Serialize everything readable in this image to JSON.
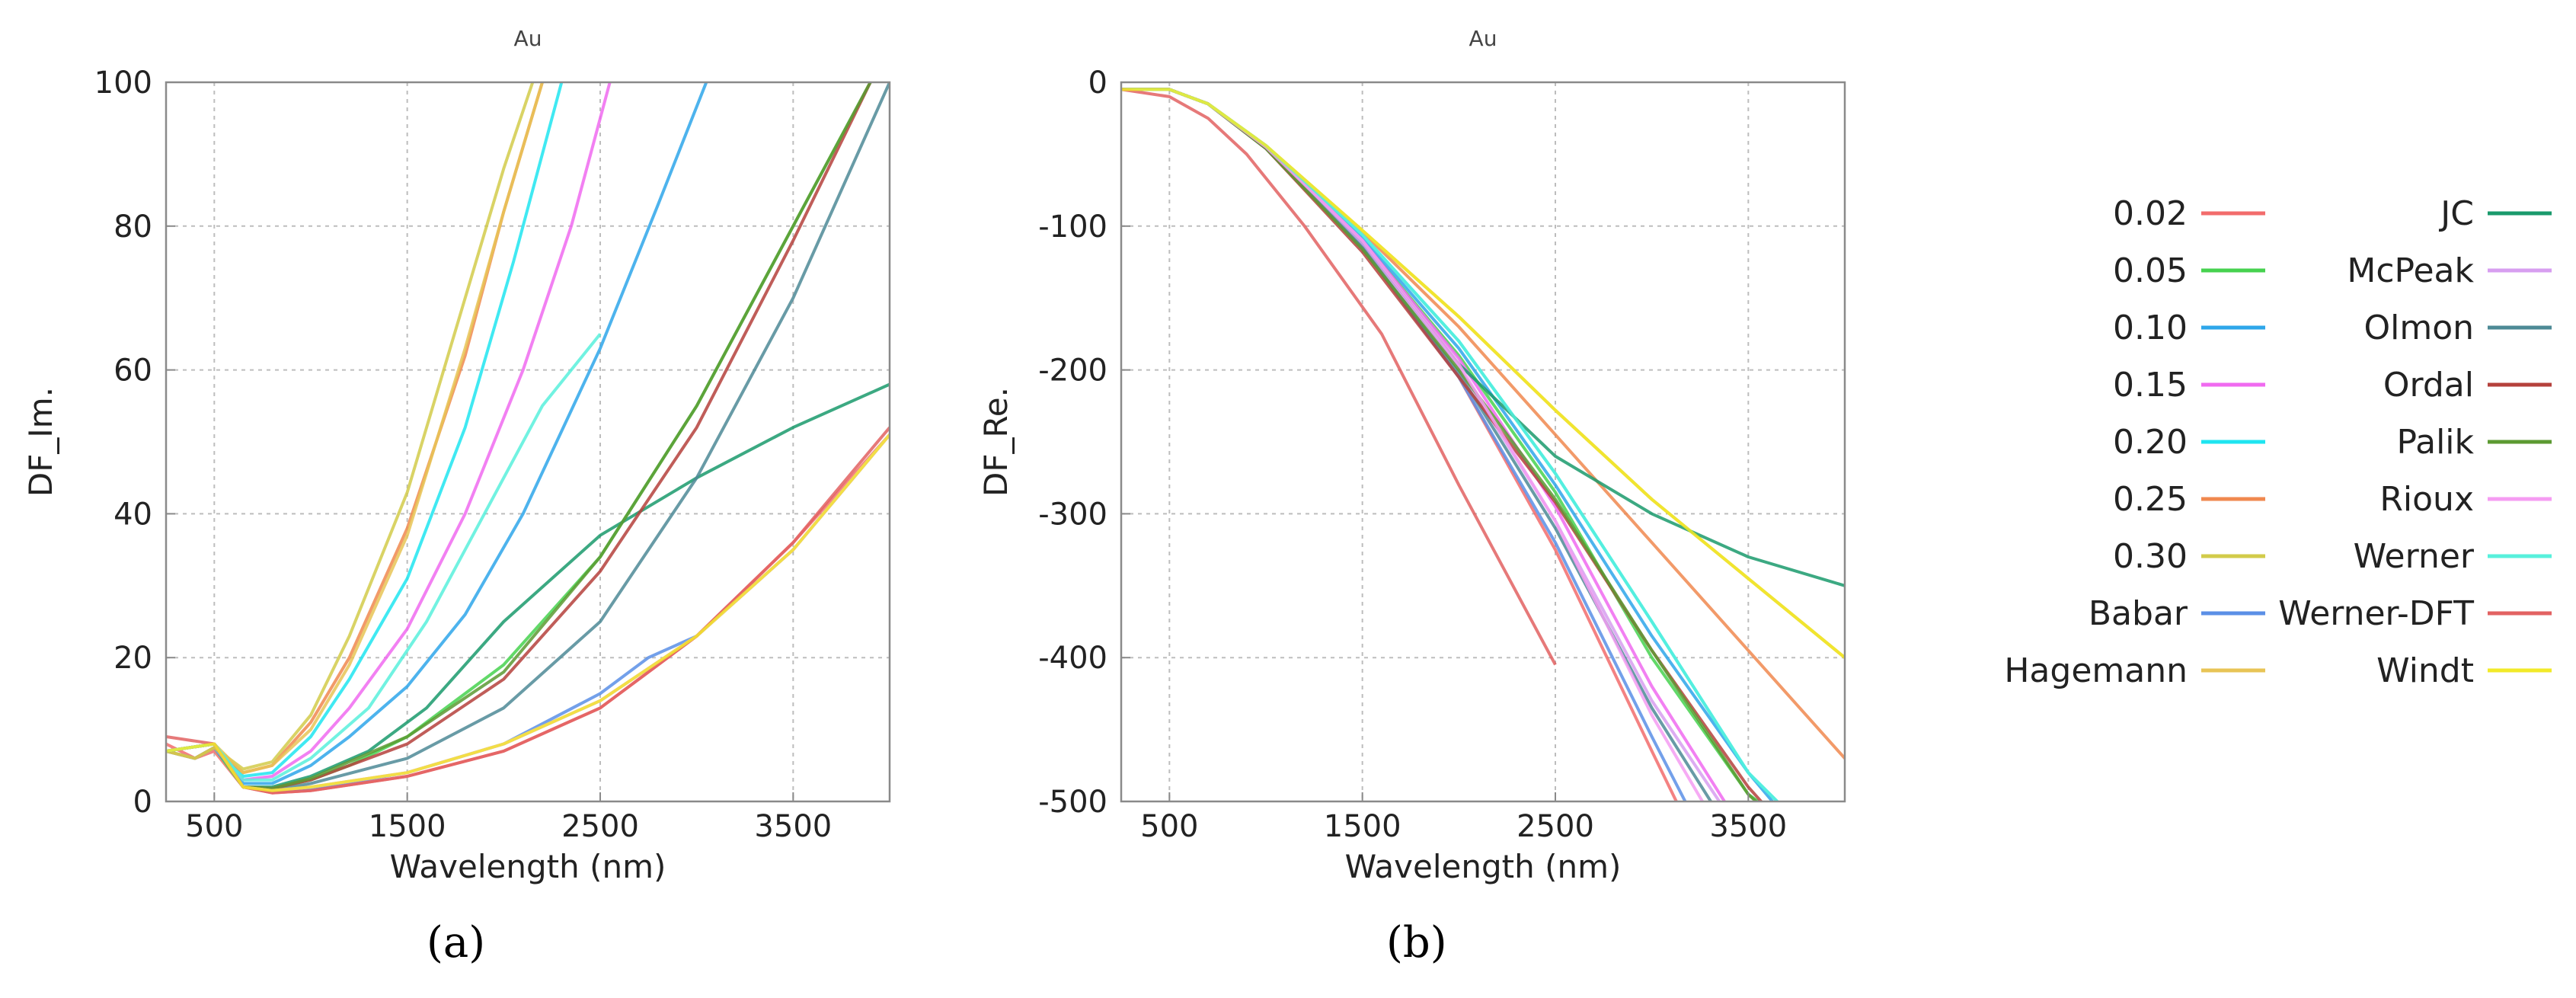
{
  "figure": {
    "caption_a": "(a)",
    "caption_b": "(b)"
  },
  "legend": [
    {
      "name": "0.02",
      "color": "#f26c6c"
    },
    {
      "name": "0.05",
      "color": "#46d24f"
    },
    {
      "name": "0.10",
      "color": "#2ea6ea"
    },
    {
      "name": "0.15",
      "color": "#f06af0"
    },
    {
      "name": "0.20",
      "color": "#1fe5f0"
    },
    {
      "name": "0.25",
      "color": "#f0884f"
    },
    {
      "name": "0.30",
      "color": "#d2cb4a"
    },
    {
      "name": "Babar",
      "color": "#5b8fe6"
    },
    {
      "name": "Hagemann",
      "color": "#e8c456"
    },
    {
      "name": "JC",
      "color": "#1a9a6c"
    },
    {
      "name": "McPeak",
      "color": "#d79ef0"
    },
    {
      "name": "Olmon",
      "color": "#4d8a96"
    },
    {
      "name": "Ordal",
      "color": "#b5413c"
    },
    {
      "name": "Palik",
      "color": "#5c9a32"
    },
    {
      "name": "Rioux",
      "color": "#f59cf2"
    },
    {
      "name": "Werner",
      "color": "#58f0dc"
    },
    {
      "name": "Werner-DFT",
      "color": "#e26262"
    },
    {
      "name": "Windt",
      "color": "#f2ea28"
    }
  ],
  "chart_data": [
    {
      "type": "line",
      "title": "Au",
      "xlabel": "Wavelength (nm)",
      "ylabel": "DF_Im.",
      "xlim": [
        250,
        4000
      ],
      "ylim": [
        0,
        100
      ],
      "xticks": [
        500,
        1500,
        2500,
        3500
      ],
      "yticks": [
        0,
        20,
        40,
        60,
        80,
        100
      ],
      "x_tick_labels": [
        "500",
        "1500",
        "2500",
        "3500"
      ],
      "y_tick_labels": [
        "0",
        "20",
        "40",
        "60",
        "80",
        "100"
      ],
      "grid": true,
      "series": [
        {
          "name": "0.02",
          "x": [
            250,
            400,
            500,
            650,
            800,
            1000,
            1500,
            2000,
            2500,
            3000,
            3500,
            4000
          ],
          "y": [
            8,
            6,
            7,
            2,
            1.2,
            1.5,
            3.5,
            7,
            13,
            23,
            36,
            51
          ]
        },
        {
          "name": "0.05",
          "x": [
            250,
            400,
            500,
            650,
            800,
            1000,
            1200,
            1500,
            2000,
            2500,
            3000,
            3500,
            3900
          ],
          "y": [
            7,
            6,
            7.5,
            2,
            1.8,
            3,
            5,
            9,
            19,
            34,
            55,
            80,
            100
          ]
        },
        {
          "name": "0.10",
          "x": [
            250,
            400,
            500,
            650,
            800,
            1000,
            1200,
            1500,
            1800,
            2100,
            2500,
            2800,
            3050
          ],
          "y": [
            7,
            6,
            7.5,
            2.5,
            2.5,
            5,
            9,
            16,
            26,
            40,
            63,
            83,
            100
          ]
        },
        {
          "name": "0.15",
          "x": [
            250,
            400,
            500,
            650,
            800,
            1000,
            1200,
            1500,
            1800,
            2100,
            2350,
            2550
          ],
          "y": [
            7,
            6,
            7.5,
            3,
            3.5,
            7,
            13,
            24,
            40,
            60,
            80,
            100
          ]
        },
        {
          "name": "0.20",
          "x": [
            250,
            400,
            500,
            650,
            800,
            1000,
            1200,
            1500,
            1800,
            2050,
            2300
          ],
          "y": [
            7,
            6,
            7.5,
            3.5,
            4,
            9,
            17,
            31,
            52,
            75,
            100
          ]
        },
        {
          "name": "0.25",
          "x": [
            250,
            400,
            500,
            650,
            800,
            1000,
            1200,
            1500,
            1800,
            2000,
            2200
          ],
          "y": [
            7,
            6,
            7.5,
            4,
            5,
            11,
            20,
            38,
            62,
            82,
            100
          ]
        },
        {
          "name": "0.30",
          "x": [
            250,
            400,
            500,
            650,
            800,
            1000,
            1200,
            1500,
            1800,
            2000,
            2150
          ],
          "y": [
            7,
            6,
            7.5,
            4.5,
            5.5,
            12,
            23,
            43,
            70,
            88,
            100
          ]
        },
        {
          "name": "Babar",
          "x": [
            250,
            500,
            650,
            800,
            1000,
            1500,
            2000,
            2500,
            2750,
            3000,
            3500,
            4000
          ],
          "y": [
            7,
            8,
            2,
            1.5,
            1.8,
            4,
            8,
            15,
            20,
            23,
            35,
            51
          ]
        },
        {
          "name": "Hagemann",
          "x": [
            250,
            500,
            650,
            800,
            1000,
            1200,
            1500,
            1800,
            2000,
            2200
          ],
          "y": [
            7,
            8,
            4,
            5,
            10,
            19,
            37,
            63,
            82,
            100
          ]
        },
        {
          "name": "JC",
          "x": [
            250,
            500,
            650,
            800,
            1000,
            1300,
            1600,
            2000,
            2500,
            3000,
            3500,
            4000
          ],
          "y": [
            7,
            8,
            2,
            2,
            3.5,
            7,
            13,
            25,
            37,
            45,
            52,
            58
          ]
        },
        {
          "name": "McPeak",
          "x": [
            250,
            500,
            650,
            800,
            1000,
            1500,
            2000,
            2500,
            3000,
            3500,
            4000
          ],
          "y": [
            7,
            8,
            2,
            1.5,
            2,
            4,
            8,
            14,
            23,
            35,
            51
          ]
        },
        {
          "name": "Olmon",
          "x": [
            250,
            500,
            650,
            800,
            1000,
            1500,
            2000,
            2500,
            3000,
            3500,
            4000
          ],
          "y": [
            7,
            8,
            2,
            1.5,
            2.5,
            6,
            13,
            25,
            45,
            70,
            100
          ]
        },
        {
          "name": "Ordal",
          "x": [
            250,
            500,
            650,
            800,
            1000,
            1500,
            2000,
            2500,
            3000,
            3500,
            3900
          ],
          "y": [
            7,
            8,
            2,
            1.8,
            3,
            8,
            17,
            32,
            52,
            78,
            100
          ]
        },
        {
          "name": "Palik",
          "x": [
            250,
            500,
            650,
            800,
            1000,
            1500,
            2000,
            2500,
            3000,
            3500,
            3900
          ],
          "y": [
            7,
            8,
            2,
            1.8,
            3.2,
            9,
            18,
            34,
            55,
            80,
            100
          ]
        },
        {
          "name": "Rioux",
          "x": [
            250,
            500,
            650,
            800,
            1000,
            1500,
            2000,
            2500,
            3000,
            3500,
            4000
          ],
          "y": [
            7,
            8,
            2,
            1.5,
            2,
            4,
            8,
            14,
            23,
            35,
            51
          ]
        },
        {
          "name": "Werner",
          "x": [
            250,
            500,
            650,
            800,
            1000,
            1300,
            1600,
            1900,
            2200,
            2500
          ],
          "y": [
            7,
            8,
            3,
            3,
            6,
            13,
            25,
            40,
            55,
            65
          ]
        },
        {
          "name": "Werner-DFT",
          "x": [
            250,
            500,
            650,
            800,
            1000,
            1500,
            2000,
            2500,
            3000,
            3500,
            4000
          ],
          "y": [
            9,
            8,
            2,
            1.2,
            1.5,
            3.5,
            7,
            13,
            23,
            36,
            52
          ]
        },
        {
          "name": "Windt",
          "x": [
            250,
            500,
            650,
            800,
            1000,
            1500,
            2000,
            2500,
            3000,
            3500,
            4000
          ],
          "y": [
            7,
            8,
            2,
            1.5,
            2,
            4,
            8,
            14,
            23,
            35,
            51
          ]
        }
      ]
    },
    {
      "type": "line",
      "title": "Au",
      "xlabel": "Wavelength (nm)",
      "ylabel": "DF_Re.",
      "xlim": [
        250,
        4000
      ],
      "ylim": [
        -500,
        0
      ],
      "xticks": [
        500,
        1500,
        2500,
        3500
      ],
      "yticks": [
        0,
        -100,
        -200,
        -300,
        -400,
        -500
      ],
      "x_tick_labels": [
        "500",
        "1500",
        "2500",
        "3500"
      ],
      "y_tick_labels": [
        "0",
        "-100",
        "-200",
        "-300",
        "-400",
        "-500"
      ],
      "grid": true,
      "series": [
        {
          "name": "0.02",
          "x": [
            250,
            500,
            700,
            1000,
            1500,
            2000,
            2500,
            3000,
            3200
          ],
          "y": [
            -5,
            -5,
            -15,
            -45,
            -115,
            -205,
            -325,
            -465,
            -520
          ]
        },
        {
          "name": "0.05",
          "x": [
            250,
            500,
            700,
            1000,
            1500,
            2000,
            2500,
            3000,
            3500,
            3750
          ],
          "y": [
            -5,
            -5,
            -15,
            -45,
            -110,
            -190,
            -285,
            -400,
            -495,
            -520
          ]
        },
        {
          "name": "0.10",
          "x": [
            250,
            500,
            700,
            1000,
            1500,
            2000,
            2500,
            3000,
            3500,
            3750
          ],
          "y": [
            -5,
            -5,
            -15,
            -45,
            -108,
            -185,
            -280,
            -385,
            -480,
            -520
          ]
        },
        {
          "name": "0.15",
          "x": [
            250,
            500,
            700,
            1000,
            1500,
            2000,
            2500,
            3000,
            3400,
            3550
          ],
          "y": [
            -5,
            -5,
            -15,
            -45,
            -110,
            -192,
            -295,
            -420,
            -505,
            -520
          ]
        },
        {
          "name": "0.20",
          "x": [
            250,
            500,
            700,
            1000,
            1500,
            2000,
            2500,
            3000,
            3500,
            3800
          ],
          "y": [
            -5,
            -5,
            -15,
            -44,
            -106,
            -180,
            -272,
            -375,
            -480,
            -520
          ]
        },
        {
          "name": "0.25",
          "x": [
            250,
            500,
            700,
            1000,
            1500,
            2000,
            2500,
            3000,
            3500,
            4000
          ],
          "y": [
            -5,
            -5,
            -15,
            -44,
            -104,
            -170,
            -245,
            -320,
            -395,
            -470
          ]
        },
        {
          "name": "0.30",
          "x": [
            250,
            500,
            700,
            1000,
            1500,
            2000,
            2500,
            3000,
            3500,
            4000
          ],
          "y": [
            -5,
            -5,
            -15,
            -44,
            -103,
            -163,
            -228,
            -290,
            -345,
            -400
          ]
        },
        {
          "name": "Babar",
          "x": [
            250,
            500,
            700,
            1000,
            1500,
            2000,
            2500,
            3000,
            3250
          ],
          "y": [
            -5,
            -5,
            -15,
            -46,
            -115,
            -205,
            -320,
            -455,
            -520
          ]
        },
        {
          "name": "Hagemann",
          "x": [
            250,
            500,
            700,
            1000,
            1500,
            2000,
            2500,
            3000,
            3500,
            4000
          ],
          "y": [
            -5,
            -5,
            -15,
            -44,
            -103,
            -163,
            -228,
            -290,
            -345,
            -400
          ]
        },
        {
          "name": "JC",
          "x": [
            250,
            500,
            700,
            1000,
            1500,
            2000,
            2500,
            3000,
            3500,
            4000
          ],
          "y": [
            -5,
            -5,
            -15,
            -45,
            -112,
            -196,
            -260,
            -300,
            -330,
            -350
          ]
        },
        {
          "name": "McPeak",
          "x": [
            250,
            500,
            700,
            1000,
            1500,
            2000,
            2500,
            3000,
            3450
          ],
          "y": [
            -5,
            -5,
            -15,
            -45,
            -112,
            -198,
            -305,
            -430,
            -520
          ]
        },
        {
          "name": "Olmon",
          "x": [
            250,
            500,
            700,
            1000,
            1500,
            2000,
            2500,
            3000,
            3400
          ],
          "y": [
            -5,
            -5,
            -15,
            -46,
            -115,
            -202,
            -310,
            -435,
            -520
          ]
        },
        {
          "name": "Ordal",
          "x": [
            250,
            500,
            700,
            1000,
            1500,
            2000,
            2500,
            3000,
            3500,
            3700
          ],
          "y": [
            -5,
            -5,
            -15,
            -46,
            -118,
            -205,
            -292,
            -395,
            -490,
            -520
          ]
        },
        {
          "name": "Palik",
          "x": [
            250,
            500,
            700,
            1000,
            1500,
            2000,
            2500,
            3000,
            3500,
            3700
          ],
          "y": [
            -5,
            -5,
            -15,
            -46,
            -116,
            -200,
            -290,
            -395,
            -495,
            -520
          ]
        },
        {
          "name": "Rioux",
          "x": [
            250,
            500,
            700,
            1000,
            1500,
            2000,
            2500,
            3000,
            3350
          ],
          "y": [
            -5,
            -5,
            -15,
            -45,
            -110,
            -196,
            -305,
            -440,
            -520
          ]
        },
        {
          "name": "Werner",
          "x": [
            250,
            500,
            700,
            1000,
            1500,
            2000,
            2500,
            3000,
            3500,
            3800
          ],
          "y": [
            -5,
            -5,
            -15,
            -44,
            -106,
            -180,
            -272,
            -375,
            -480,
            -520
          ]
        },
        {
          "name": "Werner-DFT",
          "x": [
            250,
            500,
            700,
            900,
            1200,
            1600,
            2000,
            2500
          ],
          "y": [
            -5,
            -10,
            -25,
            -50,
            -100,
            -175,
            -280,
            -405
          ]
        },
        {
          "name": "Windt",
          "x": [
            250,
            500,
            700,
            1000,
            1500,
            2000,
            2500,
            3000,
            3500,
            4000
          ],
          "y": [
            -5,
            -5,
            -15,
            -44,
            -103,
            -163,
            -228,
            -290,
            -345,
            -400
          ]
        }
      ]
    }
  ]
}
